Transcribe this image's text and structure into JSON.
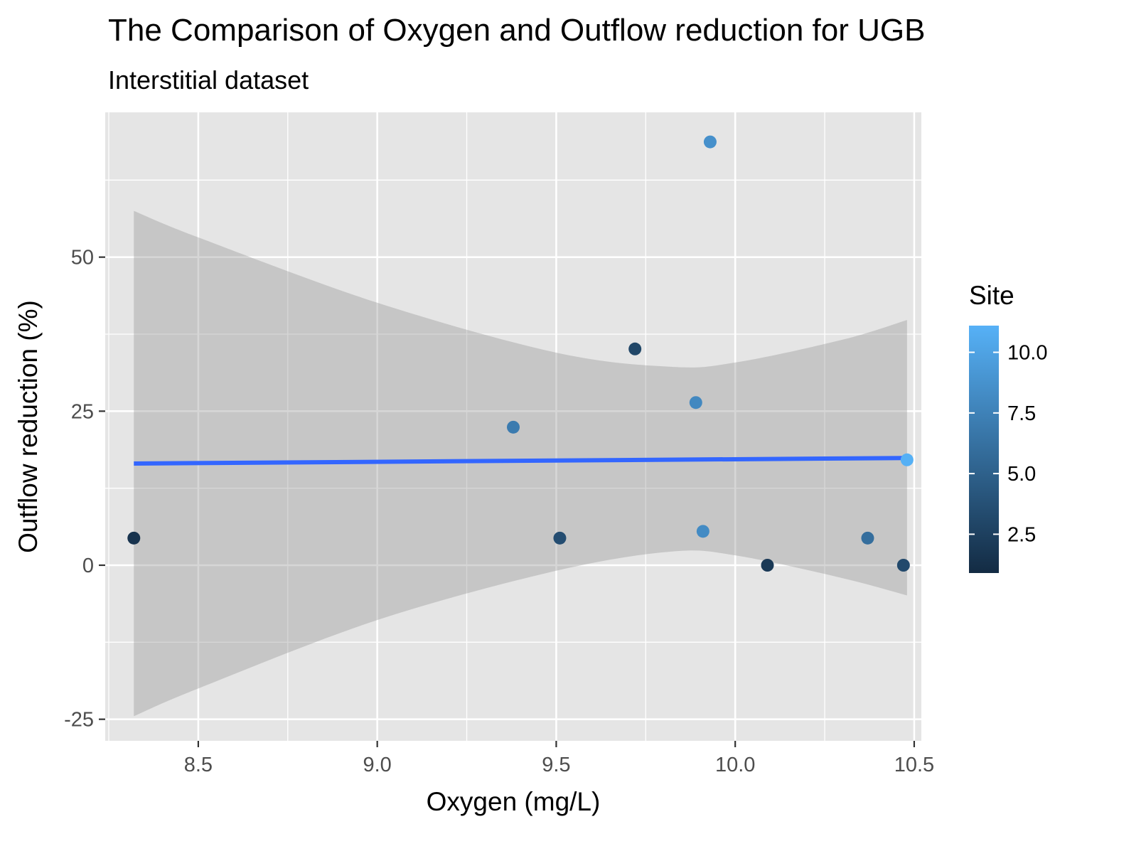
{
  "chart_data": {
    "type": "scatter",
    "title": "The Comparison of Oxygen and Outflow reduction for UGB",
    "subtitle": "Interstitial dataset",
    "xlabel": "Oxygen (mg/L)",
    "ylabel": "Outflow reduction (%)",
    "xlim": [
      8.24,
      10.52
    ],
    "ylim": [
      -28.5,
      73.5
    ],
    "x_ticks": [
      8.5,
      9.0,
      9.5,
      10.0,
      10.5
    ],
    "x_tick_labels": [
      "8.5",
      "9.0",
      "9.5",
      "10.0",
      "10.5"
    ],
    "y_ticks": [
      -25,
      0,
      25,
      50
    ],
    "y_tick_labels": [
      "-25",
      "0",
      "25",
      "50"
    ],
    "grid": true,
    "points": [
      {
        "x": 8.32,
        "y": 4.4,
        "site": 1.5
      },
      {
        "x": 9.38,
        "y": 22.4,
        "site": 7.0
      },
      {
        "x": 9.51,
        "y": 4.4,
        "site": 3.5
      },
      {
        "x": 9.72,
        "y": 35.1,
        "site": 3.0
      },
      {
        "x": 9.89,
        "y": 26.4,
        "site": 8.0
      },
      {
        "x": 9.91,
        "y": 5.5,
        "site": 8.2
      },
      {
        "x": 9.93,
        "y": 68.7,
        "site": 8.6
      },
      {
        "x": 10.09,
        "y": 0.0,
        "site": 2.0
      },
      {
        "x": 10.37,
        "y": 4.4,
        "site": 6.0
      },
      {
        "x": 10.47,
        "y": 0.0,
        "site": 3.2
      },
      {
        "x": 10.48,
        "y": 17.1,
        "site": 11.0
      }
    ],
    "trend_line": {
      "x": [
        8.32,
        10.48
      ],
      "y": [
        16.5,
        17.4
      ],
      "color": "#3366ff"
    },
    "confidence_band": {
      "x": [
        8.32,
        8.5,
        9.0,
        9.5,
        9.82,
        10.0,
        10.3,
        10.48
      ],
      "upper": [
        57.5,
        53.2,
        42.6,
        34.5,
        32.2,
        32.9,
        36.6,
        39.8
      ],
      "lower": [
        -24.5,
        -20.0,
        -8.9,
        -0.9,
        2.2,
        1.6,
        -2.1,
        -4.9
      ]
    },
    "legend": {
      "title": "Site",
      "type": "colorbar",
      "range": [
        0.9,
        11.1
      ],
      "tick_values": [
        2.5,
        5.0,
        7.5,
        10.0
      ],
      "tick_labels": [
        "2.5",
        "5.0",
        "7.5",
        "10.0"
      ],
      "low_color": "#132b43",
      "high_color": "#56b1f7",
      "placement": "right"
    },
    "colors": {
      "panel_background": "#e5e5e5",
      "grid": "#ffffff",
      "band_fill": "#999999",
      "trend": "#3366ff"
    }
  }
}
